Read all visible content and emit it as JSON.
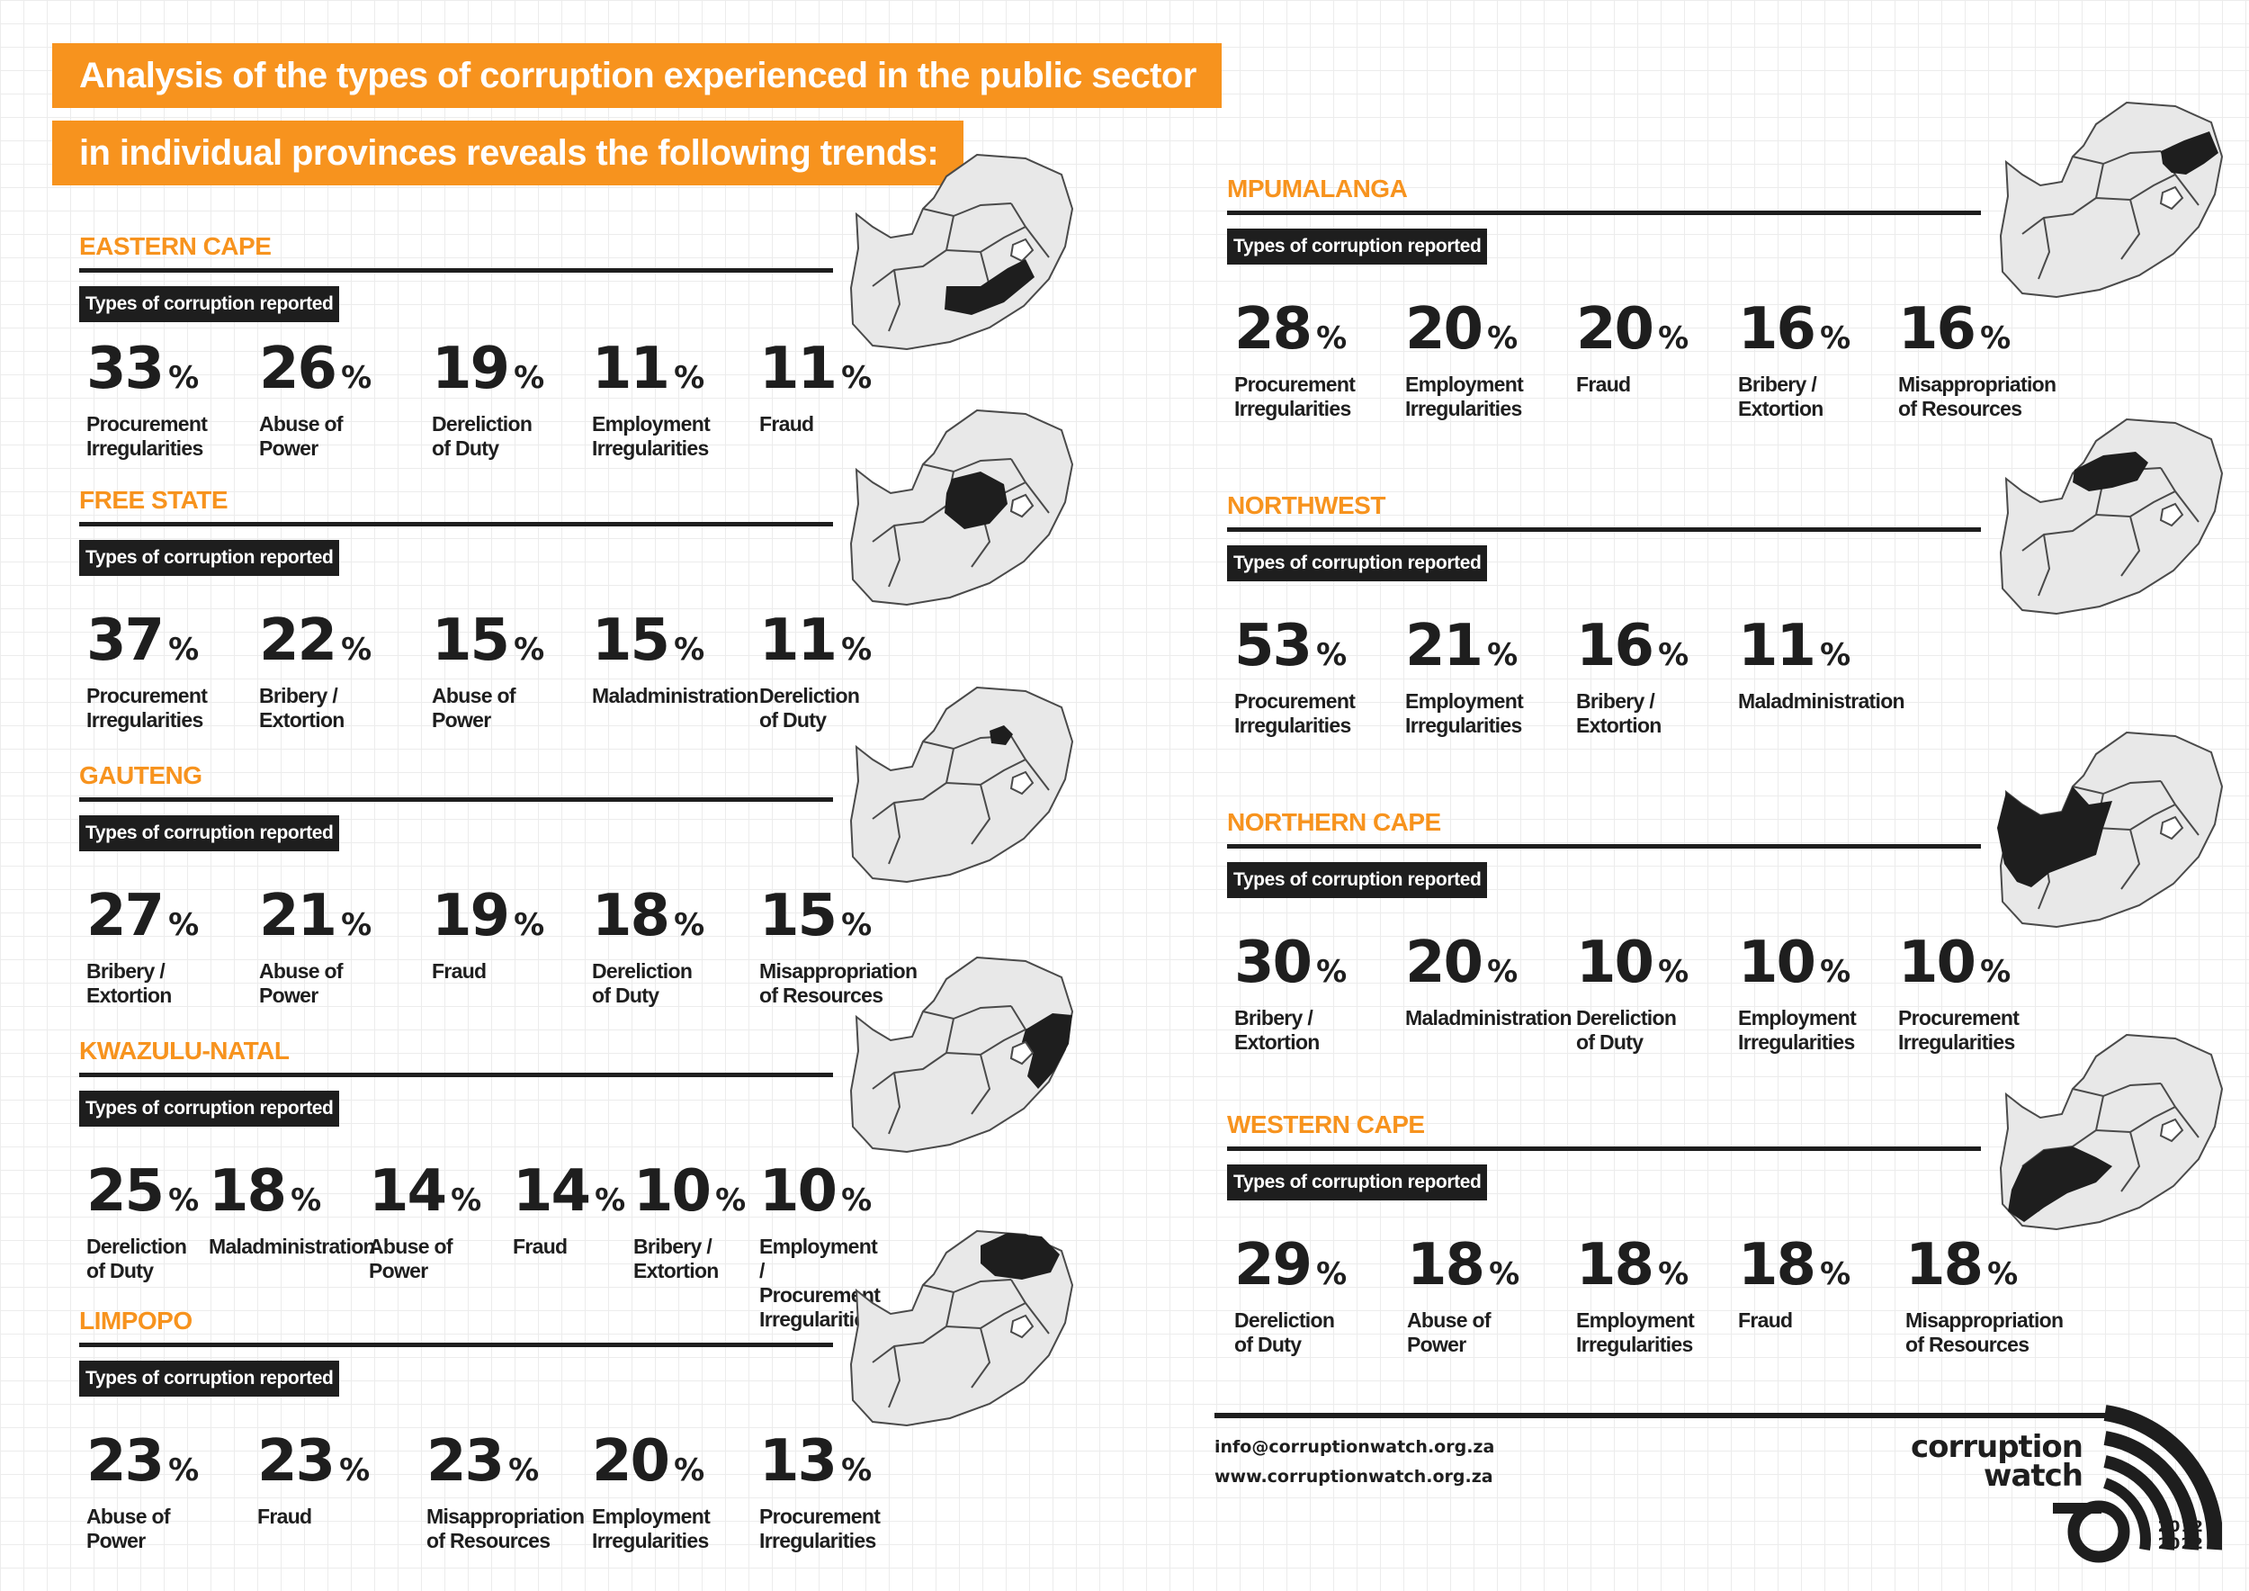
{
  "header": {
    "line1": "Analysis of the types of corruption experienced in the public sector",
    "line2": "in individual provinces reveals the following trends:"
  },
  "types_label": "Types of corruption reported",
  "provinces": {
    "eastern_cape": {
      "name": "EASTERN CAPE",
      "stats": [
        {
          "value": "33",
          "label": "Procurement\nIrregularities"
        },
        {
          "value": "26",
          "label": "Abuse of Power"
        },
        {
          "value": "19",
          "label": "Dereliction\nof Duty"
        },
        {
          "value": "11",
          "label": "Employment\nIrregularities"
        },
        {
          "value": "11",
          "label": "Fraud"
        }
      ]
    },
    "free_state": {
      "name": "FREE STATE",
      "stats": [
        {
          "value": "37",
          "label": "Procurement\nIrregularities"
        },
        {
          "value": "22",
          "label": "Bribery /\nExtortion"
        },
        {
          "value": "15",
          "label": "Abuse of Power"
        },
        {
          "value": "15",
          "label": "Maladministration"
        },
        {
          "value": "11",
          "label": "Dereliction\nof Duty"
        }
      ]
    },
    "gauteng": {
      "name": "GAUTENG",
      "stats": [
        {
          "value": "27",
          "label": "Bribery /\nExtortion"
        },
        {
          "value": "21",
          "label": "Abuse of Power"
        },
        {
          "value": "19",
          "label": "Fraud"
        },
        {
          "value": "18",
          "label": "Dereliction\nof Duty"
        },
        {
          "value": "15",
          "label": "Misappropriation\nof Resources"
        }
      ]
    },
    "kwazulu_natal": {
      "name": "KWAZULU-NATAL",
      "stats": [
        {
          "value": "25",
          "label": "Dereliction\nof Duty"
        },
        {
          "value": "18",
          "label": "Maladministration"
        },
        {
          "value": "14",
          "label": "Abuse of Power"
        },
        {
          "value": "14",
          "label": "Fraud"
        },
        {
          "value": "10",
          "label": "Bribery /\nExtortion"
        },
        {
          "value": "10",
          "label": "Employment /\nProcurement\nIrregularities"
        }
      ]
    },
    "limpopo": {
      "name": "LIMPOPO",
      "stats": [
        {
          "value": "23",
          "label": "Abuse of Power"
        },
        {
          "value": "23",
          "label": "Fraud"
        },
        {
          "value": "23",
          "label": "Misappropriation\nof Resources"
        },
        {
          "value": "20",
          "label": "Employment\nIrregularities"
        },
        {
          "value": "13",
          "label": "Procurement\nIrregularities"
        }
      ]
    },
    "mpumalanga": {
      "name": "MPUMALANGA",
      "stats": [
        {
          "value": "28",
          "label": "Procurement\nIrregularities"
        },
        {
          "value": "20",
          "label": "Employment\nIrregularities"
        },
        {
          "value": "20",
          "label": "Fraud"
        },
        {
          "value": "16",
          "label": "Bribery /\nExtortion"
        },
        {
          "value": "16",
          "label": "Misappropriation\nof Resources"
        }
      ]
    },
    "northwest": {
      "name": "NORTHWEST",
      "stats": [
        {
          "value": "53",
          "label": "Procurement\nIrregularities"
        },
        {
          "value": "21",
          "label": "Employment\nIrregularities"
        },
        {
          "value": "16",
          "label": "Bribery /\nExtortion"
        },
        {
          "value": "11",
          "label": "Maladministration"
        }
      ]
    },
    "northern_cape": {
      "name": "NORTHERN CAPE",
      "stats": [
        {
          "value": "30",
          "label": "Bribery /\nExtortion"
        },
        {
          "value": "20",
          "label": "Maladministration"
        },
        {
          "value": "10",
          "label": "Dereliction\nof Duty"
        },
        {
          "value": "10",
          "label": "Employment\nIrregularities"
        },
        {
          "value": "10",
          "label": "Procurement\nIrregularities"
        }
      ]
    },
    "western_cape": {
      "name": "WESTERN CAPE",
      "stats": [
        {
          "value": "29",
          "label": "Dereliction\nof Duty"
        },
        {
          "value": "18",
          "label": "Abuse of Power"
        },
        {
          "value": "18",
          "label": "Employment\nIrregularities"
        },
        {
          "value": "18",
          "label": "Fraud"
        },
        {
          "value": "18",
          "label": "Misappropriation\nof Resources"
        }
      ]
    }
  },
  "percent_symbol": "%",
  "footer": {
    "email": "info@corruptionwatch.org.za",
    "website": "www.corruptionwatch.org.za"
  },
  "logo": {
    "line1": "corruption",
    "line2": "watch",
    "year_start": "2012",
    "year_end": "2022"
  },
  "colors": {
    "accent": "#f7931e",
    "dark": "#1e1e1e",
    "map_fill": "#e8e8e8"
  }
}
